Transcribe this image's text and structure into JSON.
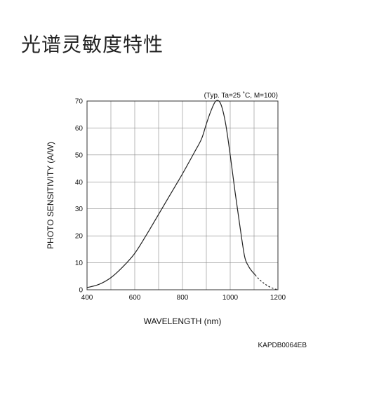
{
  "page": {
    "title": "光谱灵敏度特性",
    "figure_code": "KAPDB0064EB"
  },
  "chart_data": {
    "type": "line",
    "annotation": "(Typ. Ta=25 ˚C, M=100)",
    "xlabel": "WAVELENGTH (nm)",
    "ylabel": "PHOTO SENSITIVITY (A/W)",
    "xlim": [
      400,
      1200
    ],
    "ylim": [
      0,
      70
    ],
    "x_ticks": [
      400,
      600,
      800,
      1000,
      1200
    ],
    "y_ticks": [
      0,
      10,
      20,
      30,
      40,
      50,
      60,
      70
    ],
    "grid": true,
    "series": [
      {
        "style": "solid",
        "x": [
          400,
          450,
          500,
          550,
          600,
          650,
          700,
          750,
          800,
          850,
          880,
          900,
          920,
          940,
          960,
          980,
          1000,
          1020,
          1040,
          1060,
          1075,
          1090,
          1105
        ],
        "y": [
          0.8,
          2,
          4.5,
          8.5,
          13.5,
          20.5,
          28,
          35.5,
          43,
          51,
          56,
          61.5,
          66.5,
          70,
          69,
          62,
          50,
          36.5,
          24,
          12.5,
          9,
          7,
          5.5
        ]
      },
      {
        "style": "dashed",
        "x": [
          1105,
          1120,
          1140,
          1160,
          1180,
          1195
        ],
        "y": [
          5.5,
          4,
          2.5,
          1.3,
          0.5,
          0.1
        ]
      }
    ]
  }
}
